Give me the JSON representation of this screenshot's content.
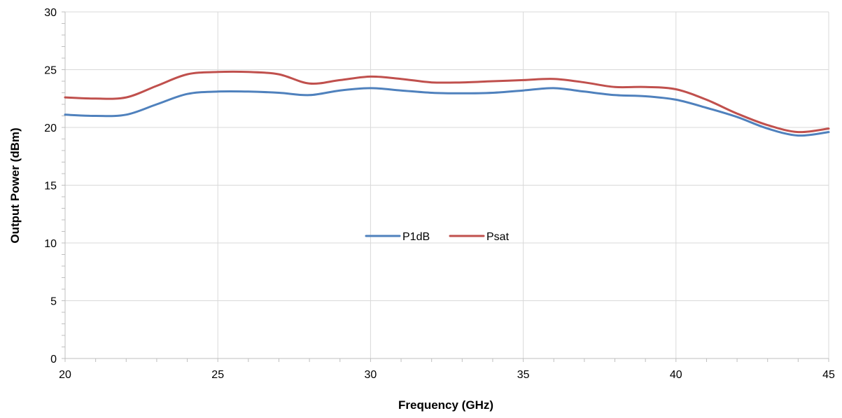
{
  "chart_data": {
    "type": "line",
    "xlabel": "Frequency (GHz)",
    "ylabel": "Output Power (dBm)",
    "xlim": [
      20,
      45
    ],
    "ylim": [
      0,
      30
    ],
    "x_ticks": [
      "20",
      "25",
      "30",
      "35",
      "40",
      "45"
    ],
    "y_ticks": [
      "0",
      "5",
      "10",
      "15",
      "20",
      "25",
      "30"
    ],
    "grid": true,
    "legend_position": "center",
    "series": [
      {
        "name": "P1dB",
        "color": "#4f81bd",
        "x": [
          20,
          21,
          22,
          23,
          24,
          25,
          26,
          27,
          28,
          29,
          30,
          31,
          32,
          33,
          34,
          35,
          36,
          37,
          38,
          39,
          40,
          41,
          42,
          43,
          44,
          45
        ],
        "y": [
          21.1,
          21.0,
          21.1,
          22.0,
          22.9,
          23.1,
          23.1,
          23.0,
          22.8,
          23.2,
          23.4,
          23.2,
          23.0,
          22.95,
          23.0,
          23.2,
          23.4,
          23.1,
          22.8,
          22.7,
          22.4,
          21.7,
          20.9,
          19.9,
          19.3,
          19.6
        ]
      },
      {
        "name": "Psat",
        "color": "#c0504d",
        "x": [
          20,
          21,
          22,
          23,
          24,
          25,
          26,
          27,
          28,
          29,
          30,
          31,
          32,
          33,
          34,
          35,
          36,
          37,
          38,
          39,
          40,
          41,
          42,
          43,
          44,
          45
        ],
        "y": [
          22.6,
          22.5,
          22.6,
          23.6,
          24.6,
          24.8,
          24.8,
          24.6,
          23.8,
          24.1,
          24.4,
          24.2,
          23.9,
          23.9,
          24.0,
          24.1,
          24.2,
          23.9,
          23.5,
          23.5,
          23.3,
          22.4,
          21.2,
          20.2,
          19.6,
          19.9
        ]
      }
    ]
  }
}
